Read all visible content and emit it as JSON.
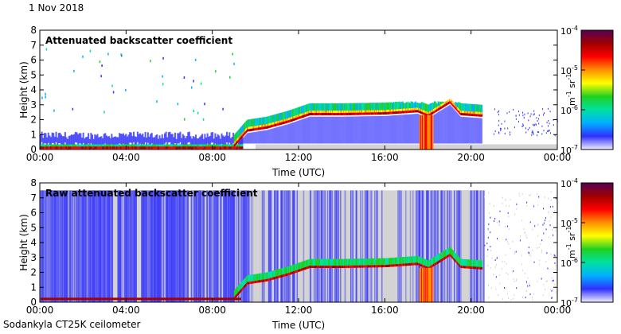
{
  "date_label": "1 Nov 2018",
  "instrument_label": "Sodankyla CT25K ceilometer",
  "colors": {
    "no_signal": "#d3d3d3",
    "colormap": [
      "#3030ff",
      "#00b0ff",
      "#00e0a0",
      "#20d020",
      "#ffff00",
      "#ff9000",
      "#ff0000",
      "#a00000",
      "#550055"
    ]
  },
  "chart_data": [
    {
      "type": "heatmap",
      "title": "Attenuated backscatter coefficient",
      "xlabel": "Time (UTC)",
      "ylabel": "Height (km)",
      "x_ticks": [
        "00:00",
        "04:00",
        "08:00",
        "12:00",
        "16:00",
        "20:00",
        "00:00"
      ],
      "y_ticks": [
        "0",
        "1",
        "2",
        "3",
        "4",
        "5",
        "6",
        "7",
        "8"
      ],
      "xlim_hours": [
        0,
        24
      ],
      "ylim_km": [
        0,
        8
      ],
      "colorbar": {
        "scale": "log",
        "ticks": [
          "10",
          "10",
          "10",
          "10"
        ],
        "tick_exponents": [
          "-4",
          "-5",
          "-6",
          "-7"
        ],
        "unit_base": [
          "m",
          "sr"
        ],
        "unit_exponents": [
          "-1",
          "-1"
        ]
      },
      "features": {
        "boundary_layer_top_km": 0.25,
        "cloud_base_km": [
          {
            "hour": 9.0,
            "km": 0.3
          },
          {
            "hour": 9.6,
            "km": 1.3
          },
          {
            "hour": 10.5,
            "km": 1.5
          },
          {
            "hour": 11.5,
            "km": 1.9
          },
          {
            "hour": 12.5,
            "km": 2.4
          },
          {
            "hour": 14.0,
            "km": 2.4
          },
          {
            "hour": 16.0,
            "km": 2.45
          },
          {
            "hour": 17.5,
            "km": 2.6
          },
          {
            "hour": 18.0,
            "km": 2.3
          },
          {
            "hour": 19.0,
            "km": 3.2
          },
          {
            "hour": 19.5,
            "km": 2.4
          },
          {
            "hour": 20.5,
            "km": 2.3
          }
        ],
        "cloud_top_km": 3.1,
        "data_end_hour": 20.6
      }
    },
    {
      "type": "heatmap",
      "title": "Raw attenuated backscatter coefficient",
      "xlabel": "Time (UTC)",
      "ylabel": "Height (km)",
      "x_ticks": [
        "00:00",
        "04:00",
        "08:00",
        "12:00",
        "16:00",
        "20:00",
        "00:00"
      ],
      "y_ticks": [
        "0",
        "1",
        "2",
        "3",
        "4",
        "5",
        "6",
        "7",
        "8"
      ],
      "xlim_hours": [
        0,
        24
      ],
      "ylim_km": [
        0,
        8
      ],
      "colorbar": {
        "scale": "log",
        "ticks": [
          "10",
          "10",
          "10",
          "10"
        ],
        "tick_exponents": [
          "-4",
          "-5",
          "-6",
          "-7"
        ],
        "unit_base": [
          "m",
          "sr"
        ],
        "unit_exponents": [
          "-1",
          "-1"
        ]
      },
      "features": {
        "noise_top_km": 7.5,
        "data_end_hour": 20.6
      }
    }
  ]
}
